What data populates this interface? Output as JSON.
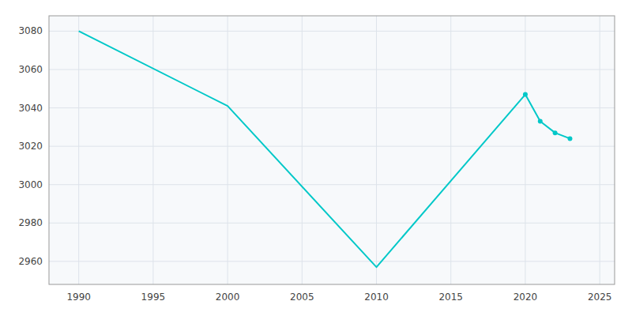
{
  "chart_data": {
    "type": "line",
    "x": [
      1990,
      2000,
      2010,
      2020,
      2021,
      2022,
      2023
    ],
    "xlim": [
      1988,
      2026
    ],
    "xticks": [
      1990,
      1995,
      2000,
      2005,
      2010,
      2015,
      2020,
      2025
    ],
    "ylim": [
      2948,
      3088
    ],
    "yticks": [
      2960,
      2980,
      3000,
      3020,
      3040,
      3060,
      3080
    ],
    "grid": true,
    "series": [
      {
        "color": "#00c8c8",
        "values": [
          3080,
          3041,
          2957,
          3047,
          3033,
          3027,
          3024
        ]
      },
      {
        "color": "#00c8c8",
        "values": [
          null,
          null,
          null,
          3047,
          3033,
          3027,
          3024
        ],
        "marker": "circle",
        "line_style": "none"
      }
    ]
  }
}
